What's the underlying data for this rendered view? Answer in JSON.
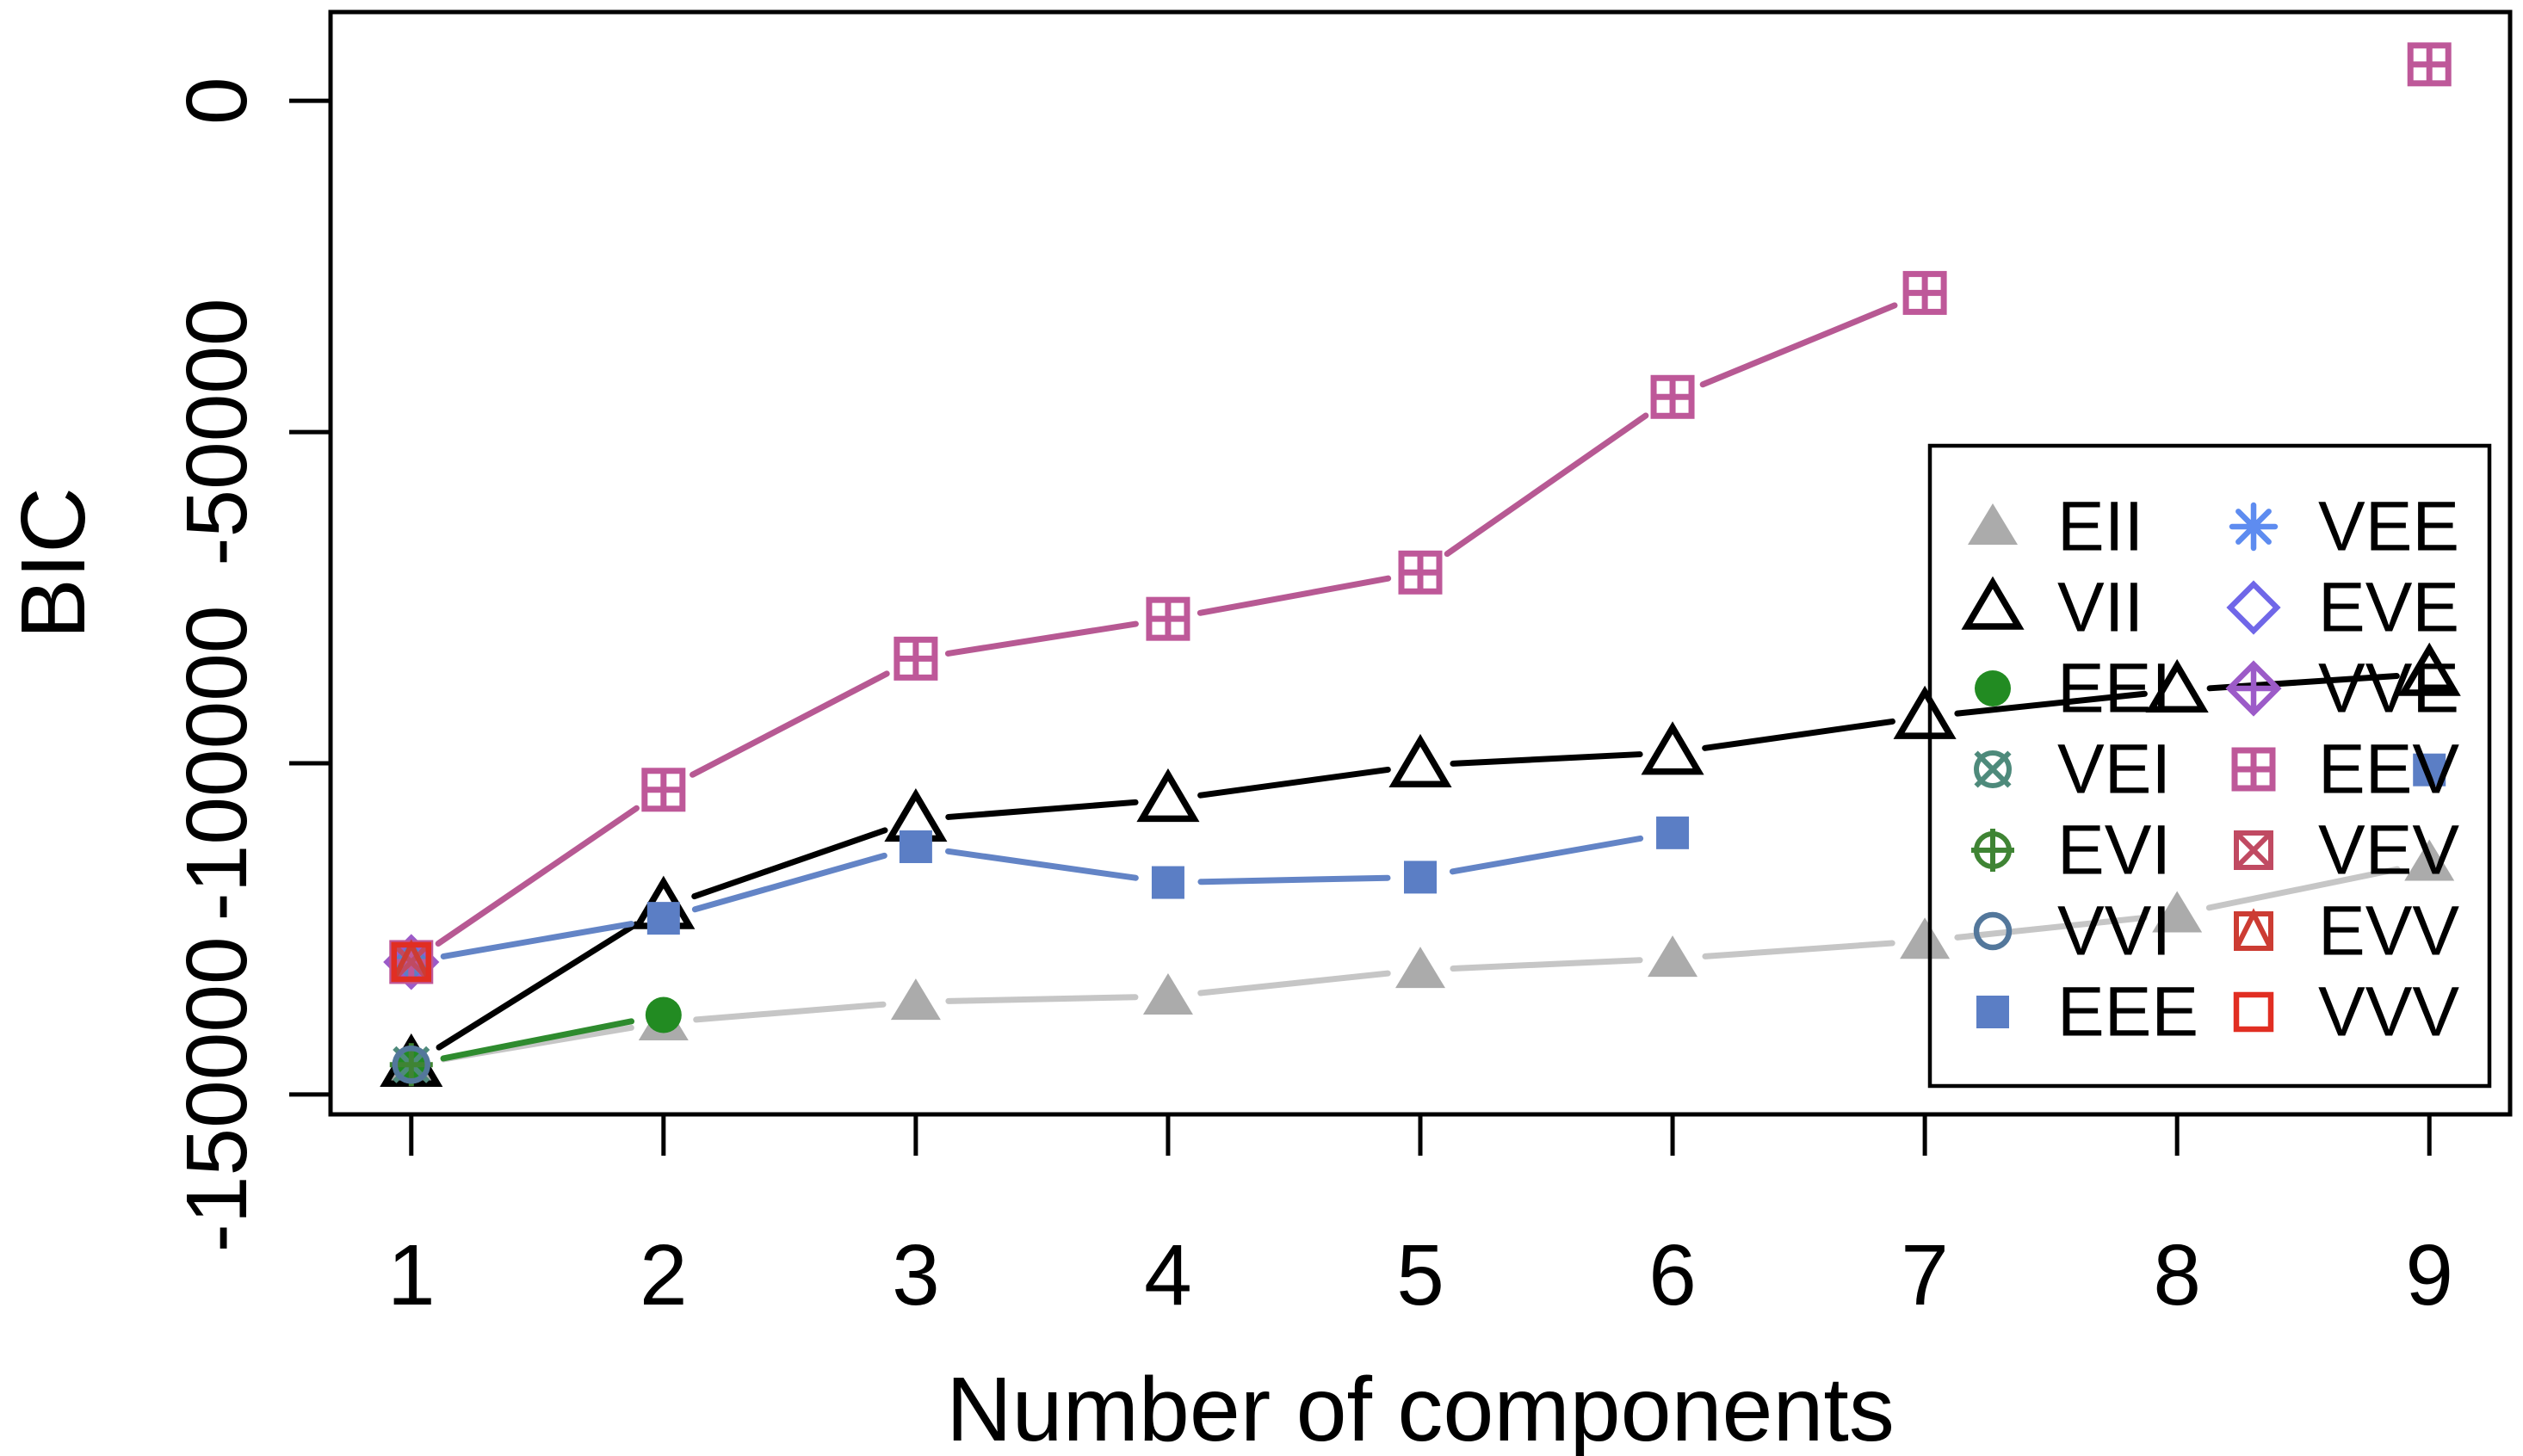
{
  "figure": {
    "background": "#ffffff",
    "axis_color": "#000000",
    "xlabel": "Number of components",
    "ylabel": "BIC"
  },
  "chart_data": {
    "type": "line",
    "x": [
      1,
      2,
      3,
      4,
      5,
      6,
      7,
      8,
      9
    ],
    "xlabel": "Number of components",
    "ylabel": "BIC",
    "xlim": [
      0.68,
      9.32
    ],
    "ylim": [
      -153000,
      13400
    ],
    "xticks": [
      1,
      2,
      3,
      4,
      5,
      6,
      7,
      8,
      9
    ],
    "xtick_labels": [
      "1",
      "2",
      "3",
      "4",
      "5",
      "6",
      "7",
      "8",
      "9"
    ],
    "yticks": [
      0,
      -50000,
      -100000,
      -150000
    ],
    "ytick_labels": [
      "0",
      "-50000",
      "-100000",
      "-150000"
    ],
    "grid": false,
    "legend_position": "bottom-right",
    "series": [
      {
        "name": "EII",
        "marker": "triangle-filled",
        "marker_color": "#ABABAB",
        "line_color": "#C6C6C6",
        "values": [
          -145500,
          -139100,
          -136000,
          -135200,
          -131200,
          -129500,
          -126800,
          -122800,
          -115000
        ]
      },
      {
        "name": "VII",
        "marker": "triangle-open",
        "marker_color": "#000000",
        "line_color": "#000000",
        "values": [
          -145500,
          -121700,
          -108500,
          -105500,
          -100300,
          -98400,
          -93000,
          -89000,
          -86500
        ]
      },
      {
        "name": "EEI",
        "marker": "circle-filled",
        "marker_color": "#228B22",
        "line_color": "#2E8B2E",
        "values": [
          -145500,
          -138000,
          null,
          null,
          null,
          null,
          null,
          null,
          null
        ]
      },
      {
        "name": "VEI",
        "marker": "circle-x",
        "marker_color": "#4E8A7B",
        "line_color": "#4E8A7B",
        "values": [
          -145500,
          null,
          null,
          null,
          null,
          null,
          null,
          null,
          null
        ]
      },
      {
        "name": "EVI",
        "marker": "circle-plus",
        "marker_color": "#3F8434",
        "line_color": "#3F8434",
        "values": [
          -145500,
          null,
          null,
          null,
          null,
          null,
          null,
          null,
          null
        ]
      },
      {
        "name": "VVI",
        "marker": "circle-open",
        "marker_color": "#53779B",
        "line_color": "#53779B",
        "values": [
          -145500,
          null,
          null,
          null,
          null,
          null,
          null,
          null,
          null
        ]
      },
      {
        "name": "EEE",
        "marker": "square-filled",
        "marker_color": "#5B7EC5",
        "line_color": "#6384C6",
        "values": [
          -130000,
          -123400,
          -112600,
          -118000,
          -117200,
          -110500,
          null,
          null,
          -101000
        ]
      },
      {
        "name": "VEE",
        "marker": "asterisk",
        "marker_color": "#5E8CF0",
        "line_color": "#5E8CF0",
        "values": [
          -130000,
          null,
          null,
          null,
          null,
          null,
          null,
          null,
          null
        ]
      },
      {
        "name": "EVE",
        "marker": "diamond-open",
        "marker_color": "#7067E8",
        "line_color": "#7067E8",
        "values": [
          -130000,
          null,
          null,
          null,
          null,
          null,
          null,
          null,
          null
        ]
      },
      {
        "name": "VVE",
        "marker": "diamond-plus",
        "marker_color": "#9C5BC8",
        "line_color": "#9C5BC8",
        "values": [
          -130000,
          null,
          null,
          null,
          null,
          null,
          null,
          null,
          null
        ]
      },
      {
        "name": "EEV",
        "marker": "square-plus",
        "marker_color": "#BE5899",
        "line_color": "#B75993",
        "values": [
          -130000,
          -104000,
          -84200,
          -78200,
          -71200,
          -44700,
          -29000,
          null,
          5500
        ]
      },
      {
        "name": "VEV",
        "marker": "square-x",
        "marker_color": "#C04A62",
        "line_color": "#C04A62",
        "values": [
          -130000,
          null,
          null,
          null,
          null,
          null,
          null,
          null,
          null
        ]
      },
      {
        "name": "EVV",
        "marker": "square-triangle",
        "marker_color": "#CC3C33",
        "line_color": "#CC3C33",
        "values": [
          -130000,
          null,
          null,
          null,
          null,
          null,
          null,
          null,
          null
        ]
      },
      {
        "name": "VVV",
        "marker": "square-open",
        "marker_color": "#E12E22",
        "line_color": "#E12E22",
        "values": [
          -130000,
          null,
          null,
          null,
          null,
          null,
          null,
          null,
          null
        ]
      }
    ],
    "legend": {
      "column1": [
        "EII",
        "VII",
        "EEI",
        "VEI",
        "EVI",
        "VVI",
        "EEE"
      ],
      "column2": [
        "VEE",
        "EVE",
        "VVE",
        "EEV",
        "VEV",
        "EVV",
        "VVV"
      ]
    }
  }
}
